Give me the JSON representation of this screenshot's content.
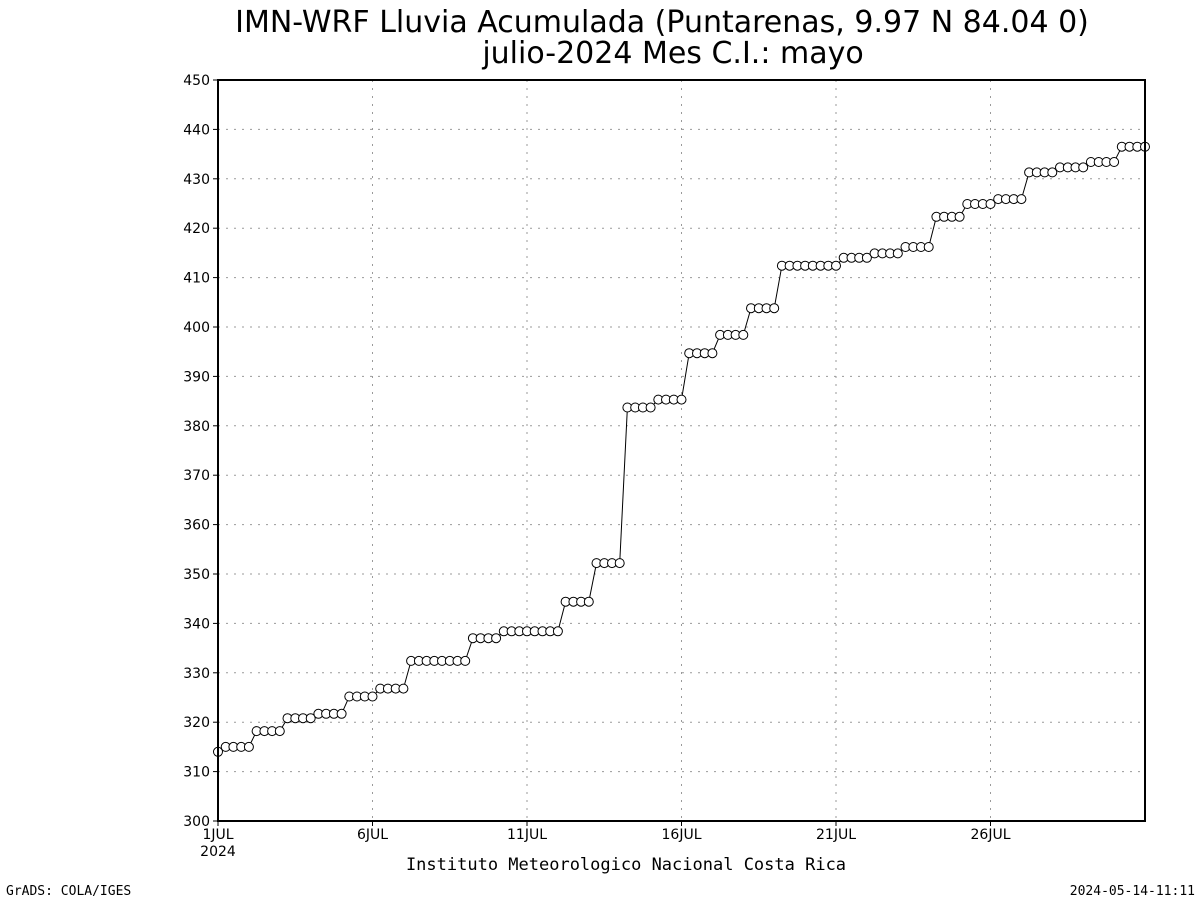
{
  "chart_data": {
    "type": "line",
    "title": "IMN-WRF  Lluvia Acumulada (Puntarenas, 9.97  N 84.04  0)",
    "subtitle": "julio-2024 Mes C.I.: mayo",
    "xlabel": "Instituto Meteorologico Nacional Costa Rica",
    "ylabel": "",
    "ylim": [
      300,
      450
    ],
    "yticks": [
      300,
      310,
      320,
      330,
      340,
      350,
      360,
      370,
      380,
      390,
      400,
      410,
      420,
      430,
      440,
      450
    ],
    "xlim": [
      1,
      31
    ],
    "xticks": [
      {
        "day": 1,
        "label": "1JUL",
        "sublabel": "2024"
      },
      {
        "day": 6,
        "label": "6JUL",
        "sublabel": ""
      },
      {
        "day": 11,
        "label": "11JUL",
        "sublabel": ""
      },
      {
        "day": 16,
        "label": "16JUL",
        "sublabel": ""
      },
      {
        "day": 21,
        "label": "21JUL",
        "sublabel": ""
      },
      {
        "day": 26,
        "label": "26JUL",
        "sublabel": ""
      }
    ],
    "grid": true,
    "x_resolution": "6-hourly",
    "x_start": "1JUL2024 00Z",
    "series": [
      {
        "values": [
          314,
          315,
          315,
          315,
          315,
          318.2,
          318.2,
          318.2,
          318.2,
          320.8,
          320.8,
          320.8,
          320.8,
          321.7,
          321.7,
          321.7,
          321.7,
          325.2,
          325.2,
          325.2,
          325.2,
          326.8,
          326.8,
          326.8,
          326.8,
          332.4,
          332.4,
          332.4,
          332.4,
          332.4,
          332.4,
          332.4,
          332.4,
          337,
          337,
          337,
          337,
          338.4,
          338.4,
          338.4,
          338.4,
          338.4,
          338.4,
          338.4,
          338.4,
          344.4,
          344.4,
          344.4,
          344.4,
          352.2,
          352.2,
          352.2,
          352.2,
          383.7,
          383.7,
          383.7,
          383.7,
          385.3,
          385.3,
          385.3,
          385.3,
          394.7,
          394.7,
          394.7,
          394.7,
          398.4,
          398.4,
          398.4,
          398.4,
          403.8,
          403.8,
          403.8,
          403.8,
          412.4,
          412.4,
          412.4,
          412.4,
          412.4,
          412.4,
          412.4,
          412.4,
          414,
          414,
          414,
          414,
          414.9,
          414.9,
          414.9,
          414.9,
          416.2,
          416.2,
          416.2,
          416.2,
          422.3,
          422.3,
          422.3,
          422.3,
          424.9,
          424.9,
          424.9,
          424.9,
          425.9,
          425.9,
          425.9,
          425.9,
          431.3,
          431.3,
          431.3,
          431.3,
          432.3,
          432.3,
          432.3,
          432.3,
          433.4,
          433.4,
          433.4,
          433.4,
          436.5,
          436.5,
          436.5,
          436.5
        ]
      }
    ]
  },
  "footer": {
    "left": "GrADS: COLA/IGES",
    "right": "2024-05-14-11:11"
  }
}
